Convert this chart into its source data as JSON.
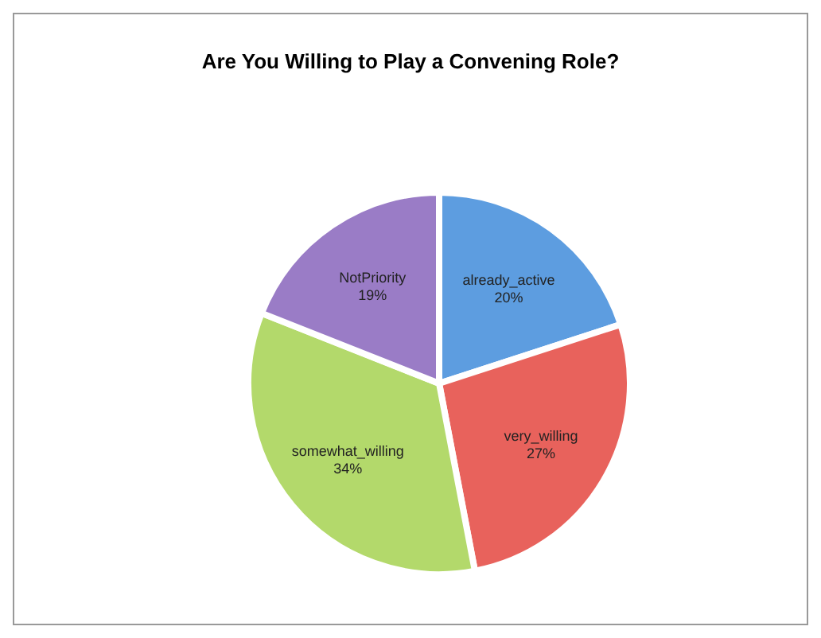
{
  "chart_data": {
    "type": "pie",
    "title": "Are You Willing to Play  a Convening Role?",
    "categories": [
      "already_active",
      "very_willing",
      "somewhat_willing",
      "NotPriority"
    ],
    "values": [
      20,
      27,
      34,
      19
    ],
    "colors": [
      "#5d9de0",
      "#e8625c",
      "#b3d96b",
      "#9a7cc6"
    ],
    "value_labels": [
      "20%",
      "27%",
      "34%",
      "19%"
    ],
    "legend": false
  }
}
